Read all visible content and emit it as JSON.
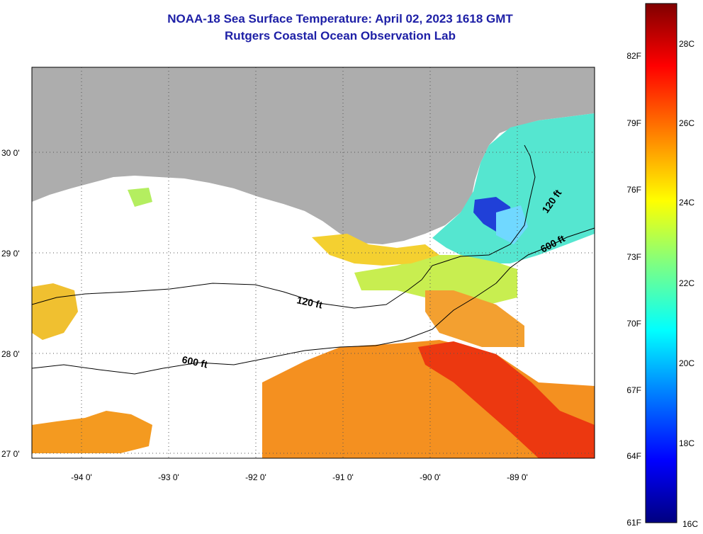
{
  "title": {
    "line1": "NOAA-18 Sea Surface Temperature:  April 02, 2023 1618 GMT",
    "line2": "Rutgers Coastal Ocean Observation Lab"
  },
  "map": {
    "lat_labels": [
      "30 0'",
      "29 0'",
      "28 0'",
      "27 0'"
    ],
    "lon_labels": [
      "-94 0'",
      "-93 0'",
      "-92 0'",
      "-91 0'",
      "-90 0'",
      "-89 0'"
    ],
    "contour_labels": [
      "120 ft",
      "600 ft",
      "120 ft",
      "600 ft"
    ],
    "colors": {
      "land": "#adadad",
      "cloud": "#ffffff",
      "frame": "#000000"
    }
  },
  "colorbar": {
    "fahrenheit": [
      "82F",
      "79F",
      "76F",
      "73F",
      "70F",
      "67F",
      "64F",
      "61F"
    ],
    "celsius": [
      "28C",
      "26C",
      "24C",
      "22C",
      "20C",
      "18C",
      "16C"
    ],
    "stops": [
      "#000080",
      "#0000ff",
      "#0080ff",
      "#00ffff",
      "#80ff80",
      "#ffff00",
      "#ff8000",
      "#ff0000",
      "#800000"
    ]
  }
}
